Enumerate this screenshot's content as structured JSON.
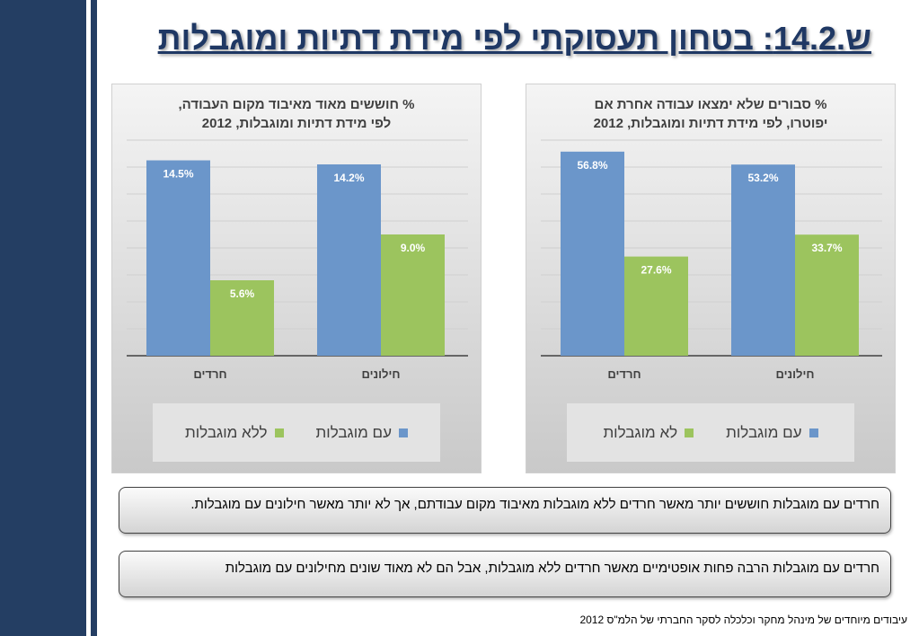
{
  "slide": {
    "title": "ש.14.2: בטחון תעסוקתי לפי מידת דתיות ומוגבלות",
    "notes": [
      "חרדים עם מוגבלות חוששים יותר מאשר חרדים ללא מוגבלות מאיבוד מקום עבודתם, אך לא יותר מאשר חילונים עם מוגבלות.",
      "חרדים עם מוגבלות הרבה פחות אופטימיים מאשר חרדים ללא מוגבלות, אבל הם לא מאוד שונים מחילונים עם מוגבלות"
    ],
    "source": "עיבודים מיוחדים של מינהל מחקר וכלכלה  לסקר החברתי של הלמ\"ס 2012"
  },
  "colors": {
    "with_disability": "#6b96ca",
    "without_disability": "#9cc45e",
    "navy": "#243e63"
  },
  "chart_data": [
    {
      "type": "bar",
      "title": "% חוששים מאוד מאיבוד מקום העבודה, לפי מידת דתיות ומוגבלות, 2012",
      "title_lines": [
        "% חוששים מאוד מאיבוד מקום העבודה,",
        "לפי מידת דתיות ומוגבלות, 2012"
      ],
      "categories": [
        "חרדים",
        "חילונים"
      ],
      "series": [
        {
          "name": "עם מוגבלות",
          "values": [
            14.5,
            14.2
          ],
          "labels": [
            "14.5%",
            "14.2%"
          ],
          "color": "#6b96ca"
        },
        {
          "name": "ללא מוגבלות",
          "values": [
            5.6,
            9.0
          ],
          "labels": [
            "5.6%",
            "9.0%"
          ],
          "color": "#9cc45e"
        }
      ],
      "ylim": [
        0,
        16
      ],
      "grid": true,
      "legend": "bottom"
    },
    {
      "type": "bar",
      "title": "% סבורים שלא ימצאו עבודה אחרת אם יפוטרו, לפי מידת דתיות ומוגבלות, 2012",
      "title_lines": [
        "% סבורים שלא ימצאו עבודה אחרת אם",
        "יפוטרו, לפי מידת דתיות ומוגבלות, 2012"
      ],
      "categories": [
        "חרדים",
        "חילונים"
      ],
      "series": [
        {
          "name": "עם מוגבלות",
          "values": [
            56.8,
            53.2
          ],
          "labels": [
            "56.8%",
            "53.2%"
          ],
          "color": "#6b96ca"
        },
        {
          "name": "לא מוגבלות",
          "values": [
            27.6,
            33.7
          ],
          "labels": [
            "27.6%",
            "33.7%"
          ],
          "color": "#9cc45e"
        }
      ],
      "ylim": [
        0,
        60
      ],
      "grid": true,
      "legend": "bottom"
    }
  ]
}
